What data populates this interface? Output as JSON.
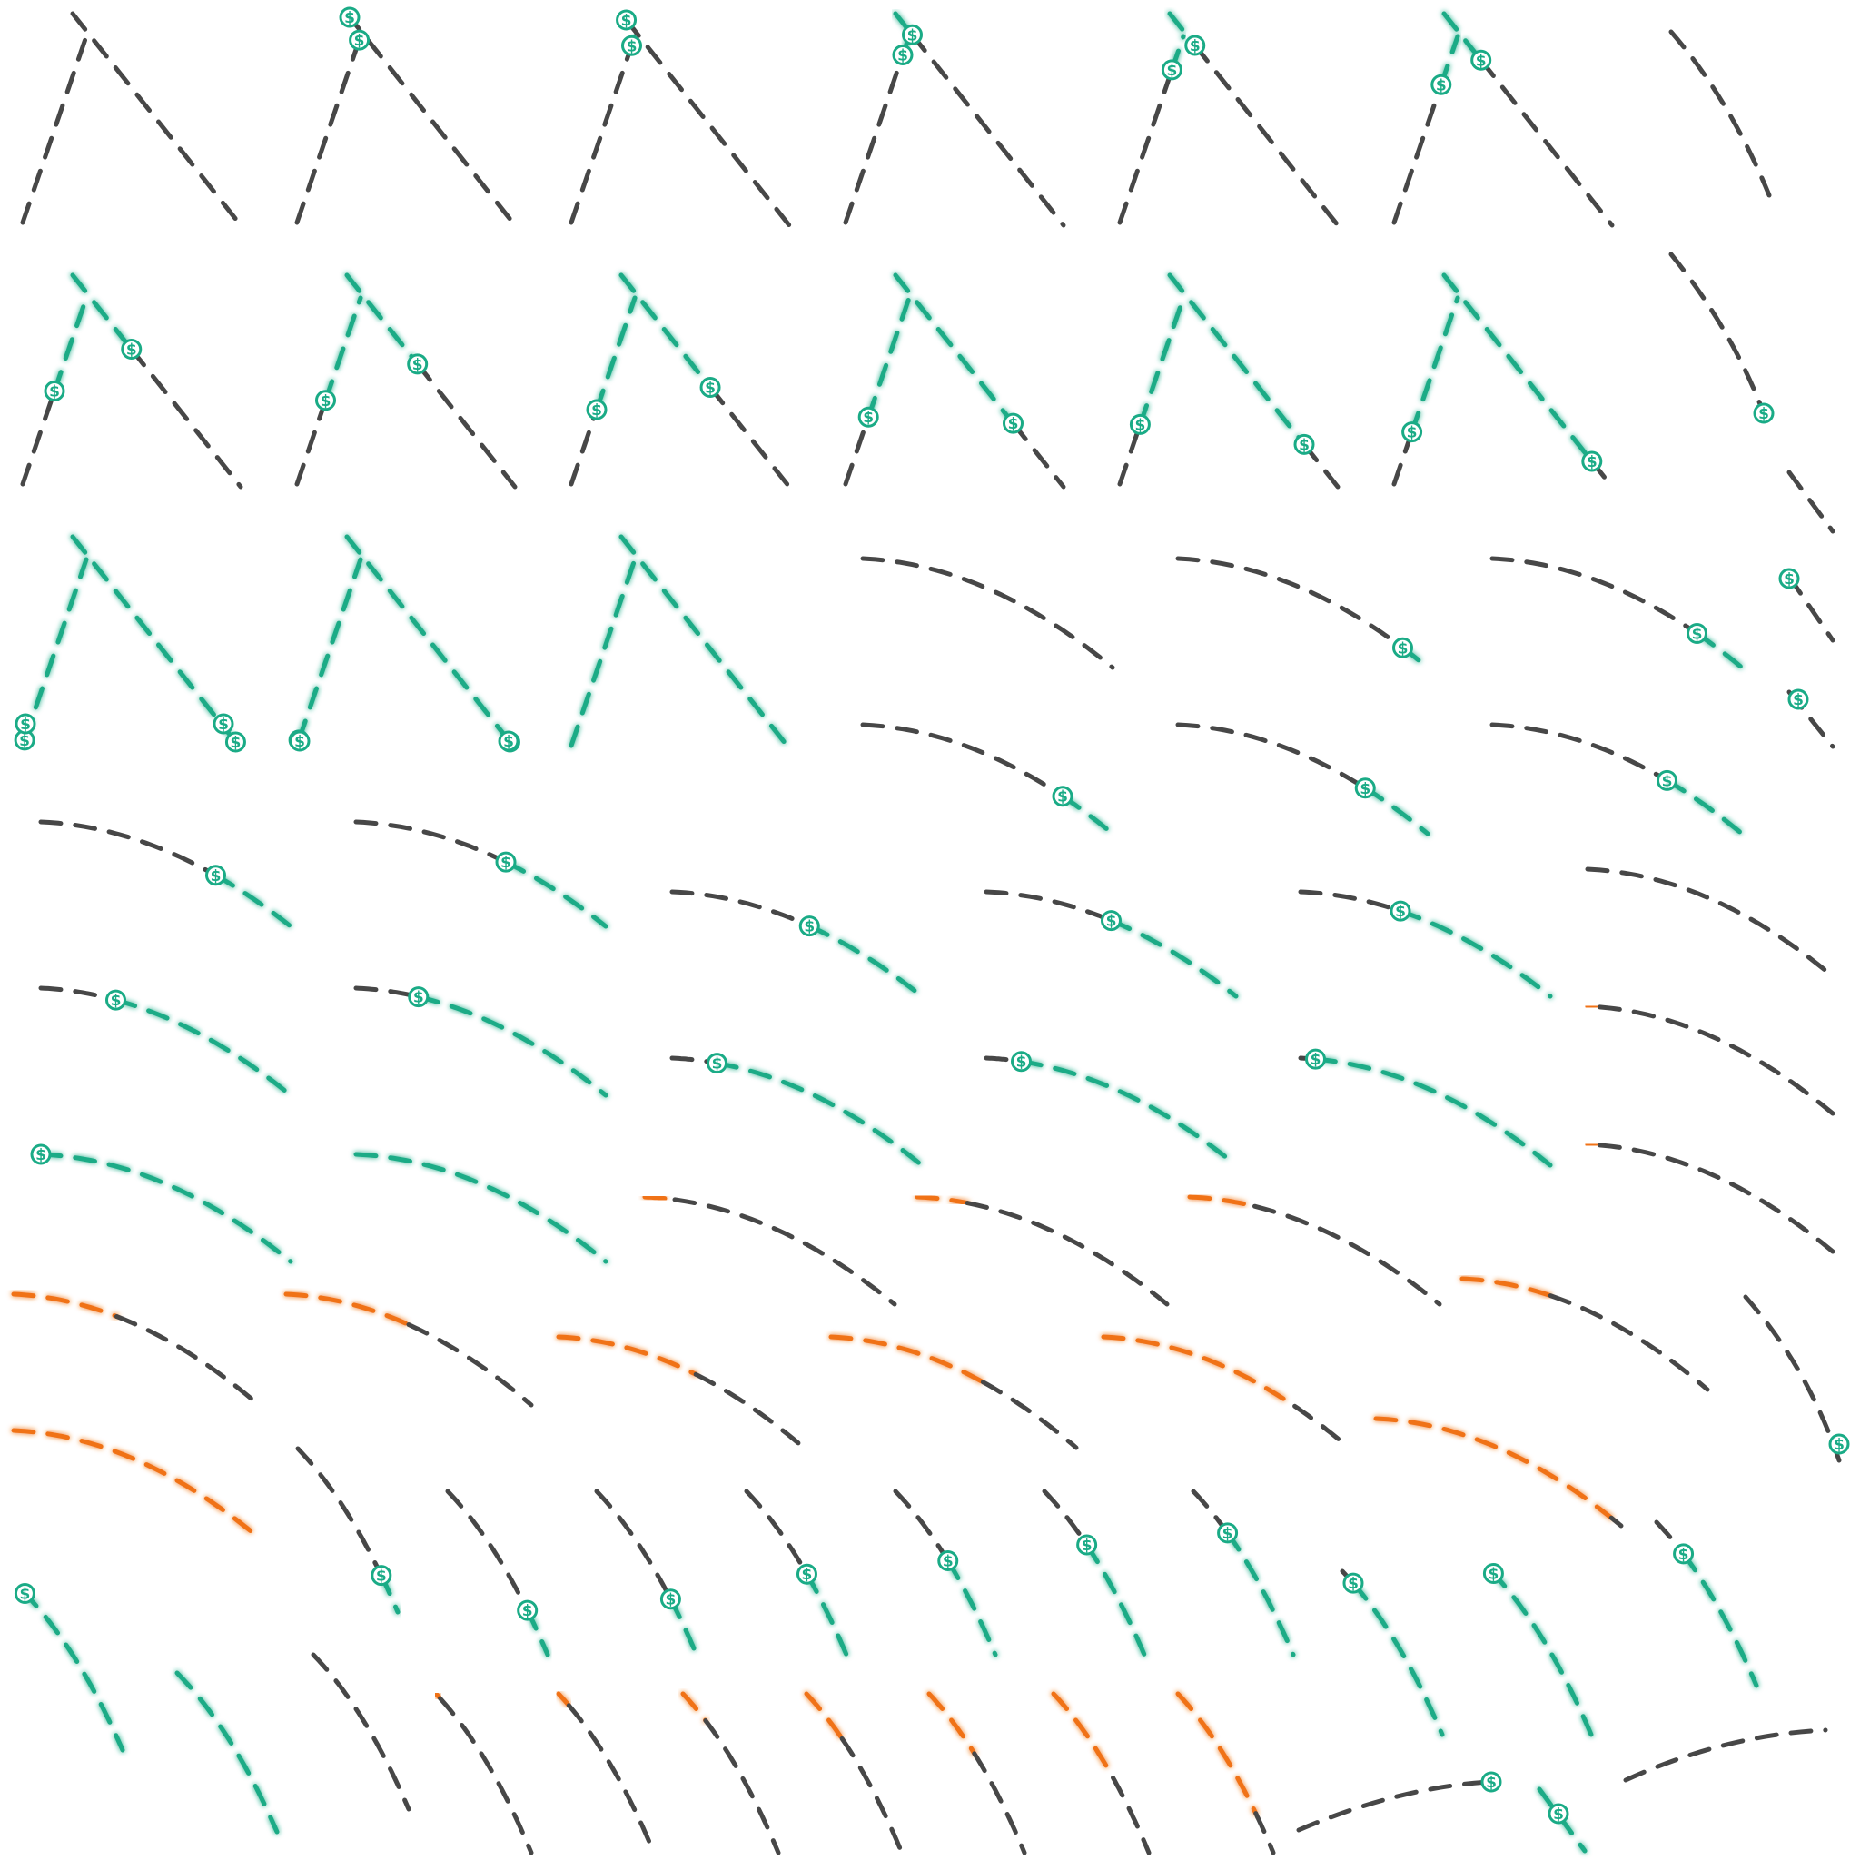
{
  "colors": {
    "idle": "#474747",
    "active": "#1aab86",
    "warning": "#f07216",
    "background": "#ffffff"
  },
  "coin": {
    "icon": "dollar-coin-icon",
    "glyph": "$"
  },
  "rows": [
    {
      "shape": "peak",
      "count": 7,
      "states": [
        "idle",
        "partial-1",
        "partial-2",
        "partial-3",
        "partial-4",
        "partial-5",
        "idle-arc"
      ]
    },
    {
      "shape": "peak",
      "count": 7,
      "states": [
        "partial",
        "partial",
        "partial",
        "partial",
        "partial",
        "partial",
        "idle-arc"
      ]
    },
    {
      "shape": "peak+arc",
      "count": 7,
      "states": [
        "active",
        "active",
        "active",
        "idle-arc",
        "idle-arc",
        "idle-arc",
        "idle-arc"
      ]
    },
    {
      "shape": "arc",
      "count": 6,
      "states": [
        "partial",
        "partial",
        "partial",
        "partial",
        "partial",
        "idle"
      ]
    },
    {
      "shape": "arc",
      "count": 6,
      "states": [
        "partial",
        "partial",
        "partial",
        "partial",
        "partial",
        "warning-partial"
      ]
    },
    {
      "shape": "arc",
      "count": 6,
      "states": [
        "active",
        "active",
        "warning-partial",
        "warning-partial",
        "warning-partial",
        "warning-partial"
      ]
    },
    {
      "shape": "arc",
      "count": 6,
      "states": [
        "warning-partial",
        "warning-partial",
        "warning-partial",
        "warning-partial",
        "warning-partial",
        "warning-partial"
      ]
    },
    {
      "shape": "steep-arc",
      "count": 12,
      "states": [
        "active",
        "partial",
        "partial",
        "partial",
        "partial",
        "partial",
        "partial",
        "partial",
        "partial",
        "partial",
        "partial",
        "partial"
      ]
    },
    {
      "shape": "steep-arc",
      "count": 9,
      "states": [
        "active",
        "active",
        "idle",
        "warning-partial",
        "warning-partial",
        "warning-partial",
        "warning-partial",
        "warning-partial",
        "warning-partial"
      ]
    }
  ]
}
